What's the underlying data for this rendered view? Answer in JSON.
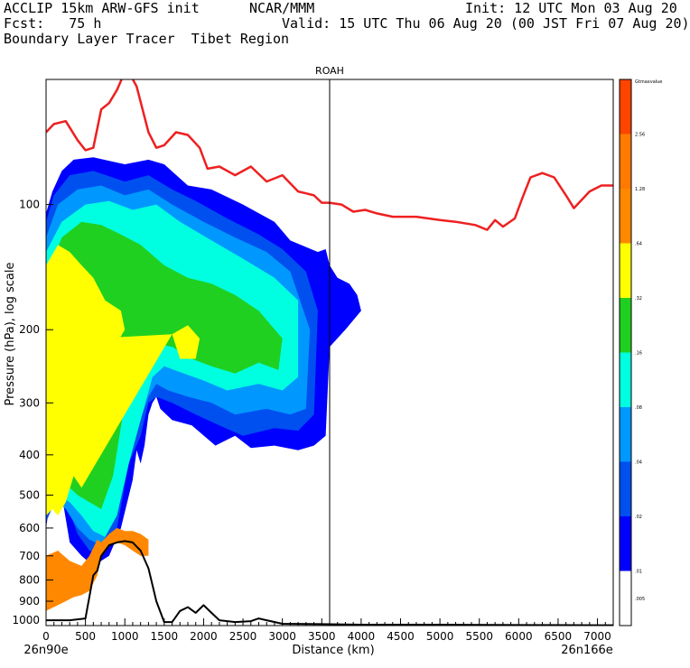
{
  "header": {
    "line1_left": "ACCLIP 15km ARW-GFS init",
    "line1_center": "NCAR/MMM",
    "line1_right": "Init: 12 UTC Mon 03 Aug 20",
    "line2_left": "Fcst:   75 h",
    "line2_right": "Valid: 15 UTC Thu 06 Aug 20 (00 JST Fri 07 Aug 20)",
    "line3_left": "Boundary Layer Tracer  Tibet Region"
  },
  "chart_data": {
    "type": "area",
    "title": "ROAH",
    "xlabel": "Distance (km)",
    "ylabel": "Pressure (hPa), log scale",
    "xlim": [
      0,
      7200
    ],
    "ylim": [
      1030,
      50
    ],
    "log_y": true,
    "x_ticks": [
      "0",
      "500",
      "1000",
      "1500",
      "2000",
      "2500",
      "3000",
      "3500",
      "4000",
      "4500",
      "5000",
      "5500",
      "6000",
      "6500",
      "7000"
    ],
    "x_tick_values": [
      0,
      500,
      1000,
      1500,
      2000,
      2500,
      3000,
      3500,
      4000,
      4500,
      5000,
      5500,
      6000,
      6500,
      7000
    ],
    "y_ticks": [
      "100",
      "200",
      "300",
      "400",
      "500",
      "600",
      "700",
      "800",
      "900",
      "1000"
    ],
    "y_tick_values": [
      100,
      200,
      300,
      400,
      500,
      600,
      700,
      800,
      900,
      1000
    ],
    "start_label": "26n90e",
    "end_label": "26n166e",
    "marker_line_x": 3600,
    "colorbar": {
      "labels": [
        ".005",
        ".01",
        ".02",
        ".04",
        ".08",
        ".16",
        ".32",
        ".64",
        "1.28",
        "2.56",
        "Gtmaxvalue"
      ],
      "colors": [
        "#ffffff",
        "#0000ff",
        "#0050f0",
        "#0098ff",
        "#00ffe0",
        "#20d020",
        "#ffff00",
        "#ff8800",
        "#ff7a00",
        "#ff4400"
      ]
    },
    "series": [
      {
        "name": "red line",
        "color": "#ee2020",
        "x": [
          0,
          100,
          250,
          400,
          500,
          600,
          700,
          800,
          900,
          1000,
          1050,
          1150,
          1300,
          1400,
          1500,
          1650,
          1800,
          1950,
          2050,
          2200,
          2400,
          2600,
          2800,
          3000,
          3200,
          3300,
          3400,
          3500,
          3600,
          3750,
          3900,
          4050,
          4200,
          4400,
          4700,
          5000,
          5200,
          5450,
          5600,
          5700,
          5800,
          5950,
          6050,
          6150,
          6300,
          6450,
          6600,
          6700,
          6900,
          7050,
          7200
        ],
        "y": [
          67,
          64,
          63,
          70,
          74,
          73,
          59,
          57,
          53,
          48,
          48,
          52,
          67,
          73,
          72,
          67,
          68,
          73,
          82,
          81,
          85,
          81,
          88,
          85,
          93,
          94,
          95,
          99,
          99,
          100,
          104,
          103,
          105,
          107,
          107,
          109,
          110,
          112,
          115,
          109,
          113,
          108,
          96,
          86,
          84,
          86,
          95,
          102,
          93,
          90,
          90
        ]
      },
      {
        "name": "black line",
        "color": "#000000",
        "x": [
          0,
          300,
          500,
          600,
          650,
          700,
          800,
          900,
          1000,
          1100,
          1200,
          1300,
          1400,
          1500,
          1600,
          1700,
          1800,
          1900,
          2000,
          2100,
          2200,
          2400,
          2600,
          2700,
          2800,
          3000,
          3500,
          4000,
          5000,
          6000,
          7000,
          7200
        ],
        "y": [
          1000,
          1000,
          990,
          780,
          760,
          700,
          660,
          650,
          645,
          650,
          680,
          750,
          900,
          1010,
          1010,
          950,
          930,
          960,
          920,
          960,
          1000,
          1010,
          1005,
          990,
          1000,
          1020,
          1022,
          1025,
          1025,
          1027,
          1028,
          1028
        ]
      }
    ],
    "tracer_layers": [
      {
        "level": ".01",
        "color": "#0000ff",
        "x": [
          0,
          80,
          200,
          350,
          600,
          1000,
          1300,
          1500,
          1800,
          2100,
          2500,
          2900,
          3100,
          3450,
          3550,
          3600,
          3700,
          3850,
          3950,
          4000,
          3800,
          3600,
          3550,
          3400,
          3200,
          2900,
          2600,
          2400,
          2150,
          1850,
          1600,
          1450,
          1400,
          1350,
          1300,
          1250,
          1200,
          1150,
          1100,
          950,
          800,
          600,
          450,
          300,
          200,
          100,
          0
        ],
        "y": [
          105,
          93,
          83,
          78,
          77,
          80,
          78,
          80,
          90,
          92,
          100,
          110,
          122,
          130,
          128,
          140,
          150,
          155,
          165,
          180,
          200,
          220,
          360,
          380,
          390,
          380,
          385,
          360,
          380,
          340,
          330,
          310,
          290,
          300,
          320,
          380,
          420,
          390,
          460,
          600,
          700,
          740,
          700,
          650,
          500,
          450,
          600
        ]
      },
      {
        "level": ".02",
        "color": "#0050f0",
        "x": [
          0,
          100,
          300,
          600,
          1000,
          1300,
          1600,
          1900,
          2300,
          2700,
          3000,
          3300,
          3450,
          3400,
          3200,
          2900,
          2500,
          2200,
          1900,
          1600,
          1400,
          1300,
          1200,
          1050,
          900,
          700,
          550,
          400,
          300,
          150,
          0
        ],
        "y": [
          110,
          95,
          85,
          83,
          88,
          85,
          92,
          98,
          108,
          118,
          128,
          145,
          180,
          320,
          350,
          345,
          360,
          340,
          320,
          300,
          290,
          300,
          360,
          420,
          600,
          690,
          680,
          620,
          550,
          500,
          580
        ]
      },
      {
        "level": ".04",
        "color": "#0098ff",
        "x": [
          0,
          150,
          400,
          700,
          1000,
          1300,
          1600,
          2000,
          2400,
          2800,
          3100,
          3350,
          3300,
          3100,
          2800,
          2400,
          2100,
          1800,
          1550,
          1400,
          1300,
          1150,
          1000,
          850,
          700,
          550,
          400,
          250,
          100,
          0
        ],
        "y": [
          120,
          100,
          92,
          90,
          95,
          92,
          100,
          110,
          120,
          130,
          145,
          200,
          310,
          320,
          310,
          320,
          300,
          290,
          280,
          270,
          290,
          350,
          420,
          580,
          660,
          640,
          600,
          540,
          510,
          550
        ]
      },
      {
        "level": ".08",
        "color": "#00ffe0",
        "x": [
          0,
          200,
          500,
          800,
          1100,
          1400,
          1700,
          2100,
          2500,
          2900,
          3200,
          3200,
          3000,
          2700,
          2300,
          2000,
          1750,
          1500,
          1350,
          1200,
          1050,
          900,
          750,
          600,
          450,
          300,
          150,
          0
        ],
        "y": [
          130,
          110,
          100,
          98,
          103,
          100,
          110,
          122,
          135,
          150,
          170,
          260,
          280,
          270,
          280,
          265,
          255,
          245,
          260,
          330,
          420,
          560,
          630,
          610,
          560,
          520,
          500,
          520
        ]
      },
      {
        "level": ".16",
        "color": "#20d020",
        "x": [
          0,
          200,
          450,
          700,
          950,
          1200,
          1500,
          1800,
          2100,
          2400,
          2700,
          3000,
          2950,
          2700,
          2400,
          2100,
          1850,
          1600,
          1350,
          1150,
          1000,
          850,
          700,
          550,
          400,
          300,
          200,
          100,
          0
        ],
        "y": [
          150,
          120,
          110,
          112,
          118,
          125,
          140,
          150,
          155,
          165,
          180,
          210,
          250,
          240,
          255,
          245,
          235,
          220,
          215,
          225,
          300,
          450,
          540,
          520,
          500,
          480,
          460,
          460,
          480
        ]
      },
      {
        "level": ".32",
        "color": "#ffff00",
        "x": [
          0,
          150,
          300,
          450,
          600,
          750,
          950,
          1000,
          900,
          750,
          600,
          1600,
          1800,
          1950,
          1900,
          1700,
          1600,
          450,
          350,
          250,
          150,
          80,
          0
        ],
        "y": [
          140,
          125,
          130,
          140,
          150,
          170,
          180,
          200,
          215,
          220,
          210,
          205,
          195,
          210,
          235,
          235,
          205,
          480,
          450,
          520,
          560,
          540,
          560
        ]
      },
      {
        "level": ".64",
        "color": "#ff8800",
        "x": [
          0,
          150,
          300,
          450,
          550,
          650,
          700,
          800,
          900,
          1000,
          1100,
          1200,
          1300,
          1300,
          1200,
          1100,
          1000,
          900,
          800,
          700,
          650,
          550,
          450,
          350,
          250,
          150,
          0
        ],
        "y": [
          700,
          680,
          720,
          740,
          700,
          640,
          650,
          620,
          600,
          610,
          610,
          620,
          640,
          700,
          700,
          680,
          660,
          650,
          660,
          700,
          780,
          850,
          870,
          880,
          900,
          920,
          950
        ]
      }
    ]
  }
}
